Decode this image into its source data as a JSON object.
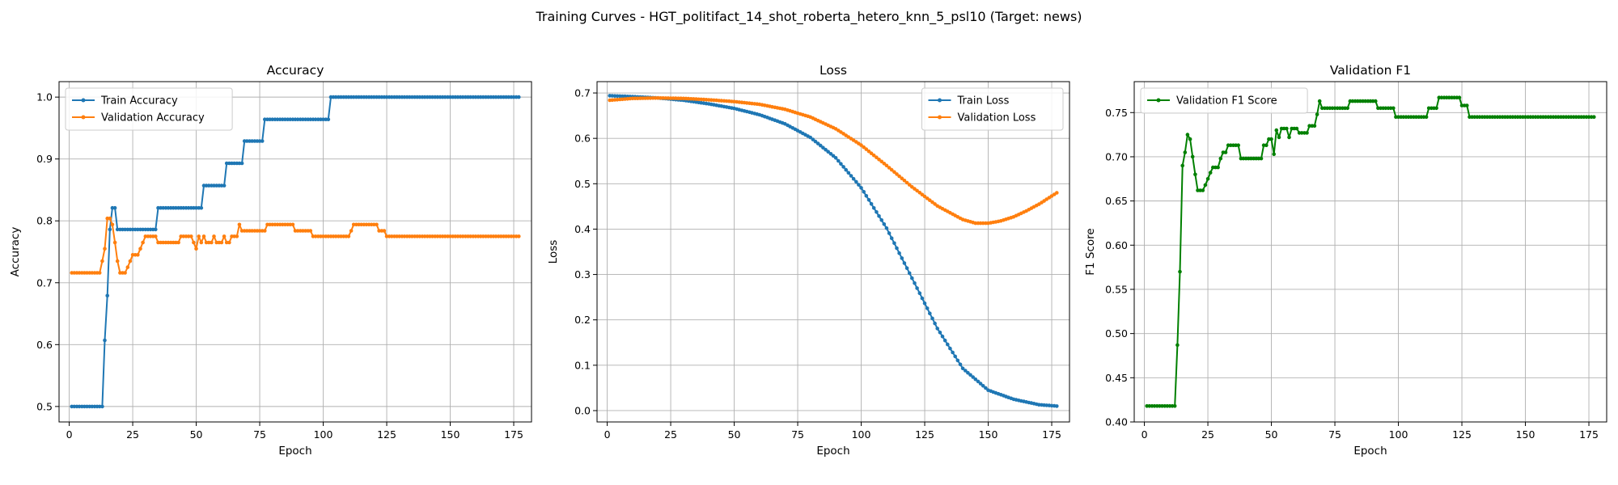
{
  "figure": {
    "suptitle": "Training Curves - HGT_politifact_14_shot_roberta_hetero_knn_5_psl10 (Target: news)"
  },
  "chart_data": [
    {
      "type": "line",
      "title": "Accuracy",
      "xlabel": "Epoch",
      "ylabel": "Accuracy",
      "xlim": [
        -4,
        182
      ],
      "ylim": [
        0.475,
        1.025
      ],
      "xticks": [
        0,
        25,
        50,
        75,
        100,
        125,
        150,
        175
      ],
      "yticks": [
        0.5,
        0.6,
        0.7,
        0.8,
        0.9,
        1.0
      ],
      "ytick_labels": [
        "0.5",
        "0.6",
        "0.7",
        "0.8",
        "0.9",
        "1.0"
      ],
      "grid": true,
      "legend_position": "upper-left",
      "series": [
        {
          "name": "Train Accuracy",
          "color": "#1f77b4",
          "points": [
            [
              1,
              0.5
            ],
            [
              13,
              0.5
            ],
            [
              14,
              0.607
            ],
            [
              15,
              0.679
            ],
            [
              16,
              0.786
            ],
            [
              17,
              0.821
            ],
            [
              18,
              0.821
            ],
            [
              19,
              0.786
            ],
            [
              34,
              0.786
            ],
            [
              35,
              0.821
            ],
            [
              52,
              0.821
            ],
            [
              53,
              0.857
            ],
            [
              61,
              0.857
            ],
            [
              62,
              0.893
            ],
            [
              68,
              0.893
            ],
            [
              69,
              0.929
            ],
            [
              76,
              0.929
            ],
            [
              77,
              0.964
            ],
            [
              102,
              0.964
            ],
            [
              103,
              1.0
            ],
            [
              177,
              1.0
            ]
          ]
        },
        {
          "name": "Validation Accuracy",
          "color": "#ff7f0e",
          "points": [
            [
              1,
              0.716
            ],
            [
              12,
              0.716
            ],
            [
              13,
              0.735
            ],
            [
              14,
              0.755
            ],
            [
              15,
              0.804
            ],
            [
              16,
              0.804
            ],
            [
              17,
              0.794
            ],
            [
              18,
              0.765
            ],
            [
              19,
              0.735
            ],
            [
              20,
              0.716
            ],
            [
              22,
              0.716
            ],
            [
              23,
              0.725
            ],
            [
              24,
              0.735
            ],
            [
              25,
              0.745
            ],
            [
              27,
              0.745
            ],
            [
              28,
              0.755
            ],
            [
              29,
              0.765
            ],
            [
              30,
              0.775
            ],
            [
              34,
              0.775
            ],
            [
              35,
              0.765
            ],
            [
              43,
              0.765
            ],
            [
              44,
              0.775
            ],
            [
              48,
              0.775
            ],
            [
              49,
              0.765
            ],
            [
              50,
              0.755
            ],
            [
              51,
              0.775
            ],
            [
              52,
              0.765
            ],
            [
              53,
              0.775
            ],
            [
              54,
              0.765
            ],
            [
              56,
              0.765
            ],
            [
              57,
              0.775
            ],
            [
              58,
              0.765
            ],
            [
              60,
              0.765
            ],
            [
              61,
              0.775
            ],
            [
              62,
              0.765
            ],
            [
              63,
              0.765
            ],
            [
              64,
              0.775
            ],
            [
              66,
              0.775
            ],
            [
              67,
              0.794
            ],
            [
              68,
              0.784
            ],
            [
              77,
              0.784
            ],
            [
              78,
              0.794
            ],
            [
              88,
              0.794
            ],
            [
              89,
              0.784
            ],
            [
              95,
              0.784
            ],
            [
              96,
              0.775
            ],
            [
              110,
              0.775
            ],
            [
              111,
              0.784
            ],
            [
              112,
              0.794
            ],
            [
              121,
              0.794
            ],
            [
              122,
              0.784
            ],
            [
              124,
              0.784
            ],
            [
              125,
              0.775
            ],
            [
              177,
              0.775
            ]
          ]
        }
      ]
    },
    {
      "type": "line",
      "title": "Loss",
      "xlabel": "Epoch",
      "ylabel": "Loss",
      "xlim": [
        -4,
        182
      ],
      "ylim": [
        -0.025,
        0.725
      ],
      "xticks": [
        0,
        25,
        50,
        75,
        100,
        125,
        150,
        175
      ],
      "yticks": [
        0.0,
        0.1,
        0.2,
        0.3,
        0.4,
        0.5,
        0.6,
        0.7
      ],
      "ytick_labels": [
        "0.0",
        "0.1",
        "0.2",
        "0.3",
        "0.4",
        "0.5",
        "0.6",
        "0.7"
      ],
      "grid": true,
      "legend_position": "upper-right",
      "series": [
        {
          "name": "Train Loss",
          "color": "#1f77b4",
          "points": [
            [
              1,
              0.694
            ],
            [
              10,
              0.692
            ],
            [
              20,
              0.689
            ],
            [
              30,
              0.684
            ],
            [
              40,
              0.676
            ],
            [
              50,
              0.666
            ],
            [
              60,
              0.652
            ],
            [
              70,
              0.632
            ],
            [
              80,
              0.602
            ],
            [
              90,
              0.557
            ],
            [
              100,
              0.491
            ],
            [
              110,
              0.402
            ],
            [
              120,
              0.292
            ],
            [
              130,
              0.181
            ],
            [
              140,
              0.093
            ],
            [
              150,
              0.045
            ],
            [
              160,
              0.025
            ],
            [
              170,
              0.013
            ],
            [
              177,
              0.01
            ]
          ]
        },
        {
          "name": "Validation Loss",
          "color": "#ff7f0e",
          "points": [
            [
              1,
              0.684
            ],
            [
              10,
              0.688
            ],
            [
              20,
              0.689
            ],
            [
              30,
              0.688
            ],
            [
              40,
              0.685
            ],
            [
              50,
              0.681
            ],
            [
              60,
              0.675
            ],
            [
              70,
              0.664
            ],
            [
              80,
              0.647
            ],
            [
              90,
              0.621
            ],
            [
              100,
              0.585
            ],
            [
              110,
              0.54
            ],
            [
              120,
              0.493
            ],
            [
              130,
              0.451
            ],
            [
              140,
              0.421
            ],
            [
              145,
              0.413
            ],
            [
              150,
              0.413
            ],
            [
              155,
              0.418
            ],
            [
              160,
              0.427
            ],
            [
              165,
              0.44
            ],
            [
              170,
              0.455
            ],
            [
              177,
              0.48
            ]
          ]
        }
      ]
    },
    {
      "type": "line",
      "title": "Validation F1",
      "xlabel": "Epoch",
      "ylabel": "F1 Score",
      "xlim": [
        -4,
        182
      ],
      "ylim": [
        0.4,
        0.785
      ],
      "xticks": [
        0,
        25,
        50,
        75,
        100,
        125,
        150,
        175
      ],
      "yticks": [
        0.4,
        0.45,
        0.5,
        0.55,
        0.6,
        0.65,
        0.7,
        0.75
      ],
      "ytick_labels": [
        "0.40",
        "0.45",
        "0.50",
        "0.55",
        "0.60",
        "0.65",
        "0.70",
        "0.75"
      ],
      "grid": true,
      "legend_position": "upper-left",
      "series": [
        {
          "name": "Validation F1 Score",
          "color": "#008000",
          "points": [
            [
              1,
              0.418
            ],
            [
              12,
              0.418
            ],
            [
              13,
              0.487
            ],
            [
              14,
              0.57
            ],
            [
              15,
              0.69
            ],
            [
              16,
              0.705
            ],
            [
              17,
              0.725
            ],
            [
              18,
              0.72
            ],
            [
              19,
              0.7
            ],
            [
              20,
              0.68
            ],
            [
              21,
              0.662
            ],
            [
              23,
              0.662
            ],
            [
              24,
              0.668
            ],
            [
              25,
              0.675
            ],
            [
              26,
              0.682
            ],
            [
              27,
              0.688
            ],
            [
              29,
              0.688
            ],
            [
              30,
              0.698
            ],
            [
              31,
              0.705
            ],
            [
              32,
              0.705
            ],
            [
              33,
              0.713
            ],
            [
              37,
              0.713
            ],
            [
              38,
              0.698
            ],
            [
              46,
              0.698
            ],
            [
              47,
              0.713
            ],
            [
              48,
              0.713
            ],
            [
              49,
              0.72
            ],
            [
              50,
              0.72
            ],
            [
              51,
              0.703
            ],
            [
              52,
              0.73
            ],
            [
              53,
              0.722
            ],
            [
              54,
              0.732
            ],
            [
              56,
              0.732
            ],
            [
              57,
              0.722
            ],
            [
              58,
              0.732
            ],
            [
              60,
              0.732
            ],
            [
              61,
              0.727
            ],
            [
              64,
              0.727
            ],
            [
              65,
              0.735
            ],
            [
              67,
              0.735
            ],
            [
              68,
              0.748
            ],
            [
              69,
              0.763
            ],
            [
              70,
              0.755
            ],
            [
              80,
              0.755
            ],
            [
              81,
              0.763
            ],
            [
              91,
              0.763
            ],
            [
              92,
              0.755
            ],
            [
              98,
              0.755
            ],
            [
              99,
              0.745
            ],
            [
              111,
              0.745
            ],
            [
              112,
              0.755
            ],
            [
              115,
              0.755
            ],
            [
              116,
              0.767
            ],
            [
              124,
              0.767
            ],
            [
              125,
              0.758
            ],
            [
              127,
              0.758
            ],
            [
              128,
              0.745
            ],
            [
              177,
              0.745
            ]
          ]
        }
      ]
    }
  ]
}
